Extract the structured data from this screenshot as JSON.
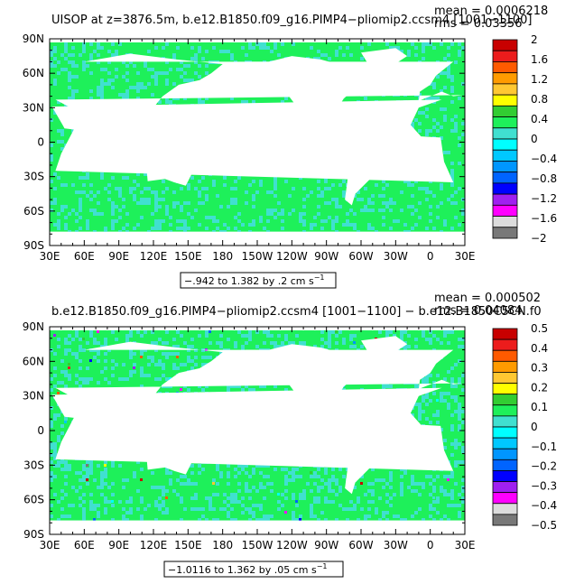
{
  "page": {
    "background": "#ffffff",
    "land_color": "#ffffff",
    "ocean_base_color": "#1ef05a"
  },
  "chart_data": [
    {
      "type": "heatmap",
      "title": "UISOP at z=3876.5m, b.e12.B1850.f09_g16.PIMP4−pliomip2.ccsm4 [1001−1100]",
      "mean_text": "mean = 0.0006218",
      "rms_text": "rms = 0.03356",
      "range_text": "−.942 to 1.382 by .2 cm s",
      "range_sup": "−1",
      "x_ticks": [
        "30E",
        "60E",
        "90E",
        "120E",
        "150E",
        "180",
        "150W",
        "120W",
        "90W",
        "60W",
        "30W",
        "0",
        "30E"
      ],
      "y_ticks": [
        "90N",
        "60N",
        "30N",
        "0",
        "30S",
        "60S",
        "90S"
      ],
      "lon_range": [
        30,
        390
      ],
      "lat_range": [
        -90,
        90
      ],
      "data_lat_min": -78,
      "colorbar": {
        "levels": [
          "2",
          "1.6",
          "1.2",
          "0.8",
          "0.4",
          "0",
          "−0.4",
          "−0.8",
          "−1.2",
          "−1.6",
          "−2"
        ],
        "colors": [
          "#c80000",
          "#ec1c1c",
          "#ff5a00",
          "#ff9b00",
          "#ffc832",
          "#ffff00",
          "#32cd32",
          "#1ef05a",
          "#40e0d0",
          "#00ffff",
          "#00c8ff",
          "#0096ff",
          "#0064ff",
          "#0000ff",
          "#a020f0",
          "#ff00ff",
          "#dcdcdc",
          "#787878"
        ]
      },
      "field": {
        "description_levels": "mostly near zero",
        "dominant_color": "#1ef05a",
        "secondary_color": "#40e0d0",
        "secondary_fraction": 0.22,
        "speckle_fraction": 0.0
      }
    },
    {
      "type": "heatmap",
      "title": "b.e12.B1850.f09_g16.PIMP4−pliomip2.ccsm4 [1001−1100] − b.e12.B1850C5CN.f0",
      "mean_text": "mean = 0.000502",
      "rms_text": "rms = 0.04084",
      "range_text": "−1.0116 to 1.362 by .05 cm s",
      "range_sup": "−1",
      "x_ticks": [
        "30E",
        "60E",
        "90E",
        "120E",
        "150E",
        "180",
        "150W",
        "120W",
        "90W",
        "60W",
        "30W",
        "0",
        "30E"
      ],
      "y_ticks": [
        "90N",
        "60N",
        "30N",
        "0",
        "30S",
        "60S",
        "90S"
      ],
      "lon_range": [
        30,
        390
      ],
      "lat_range": [
        -90,
        90
      ],
      "data_lat_min": -78,
      "colorbar": {
        "levels": [
          "0.5",
          "0.4",
          "0.3",
          "0.2",
          "0.1",
          "0",
          "−0.1",
          "−0.2",
          "−0.3",
          "−0.4",
          "−0.5"
        ],
        "colors": [
          "#c80000",
          "#ec1c1c",
          "#ff5a00",
          "#ff9b00",
          "#ffc832",
          "#ffff00",
          "#32cd32",
          "#1ef05a",
          "#40e0d0",
          "#00ffff",
          "#00c8ff",
          "#0096ff",
          "#0064ff",
          "#0000ff",
          "#a020f0",
          "#ff00ff",
          "#dcdcdc",
          "#787878"
        ]
      },
      "field": {
        "description_levels": "mostly near zero with scattered extremes",
        "dominant_color": "#1ef05a",
        "secondary_color": "#40e0d0",
        "secondary_fraction": 0.28,
        "speckle_fraction": 0.012
      }
    }
  ]
}
